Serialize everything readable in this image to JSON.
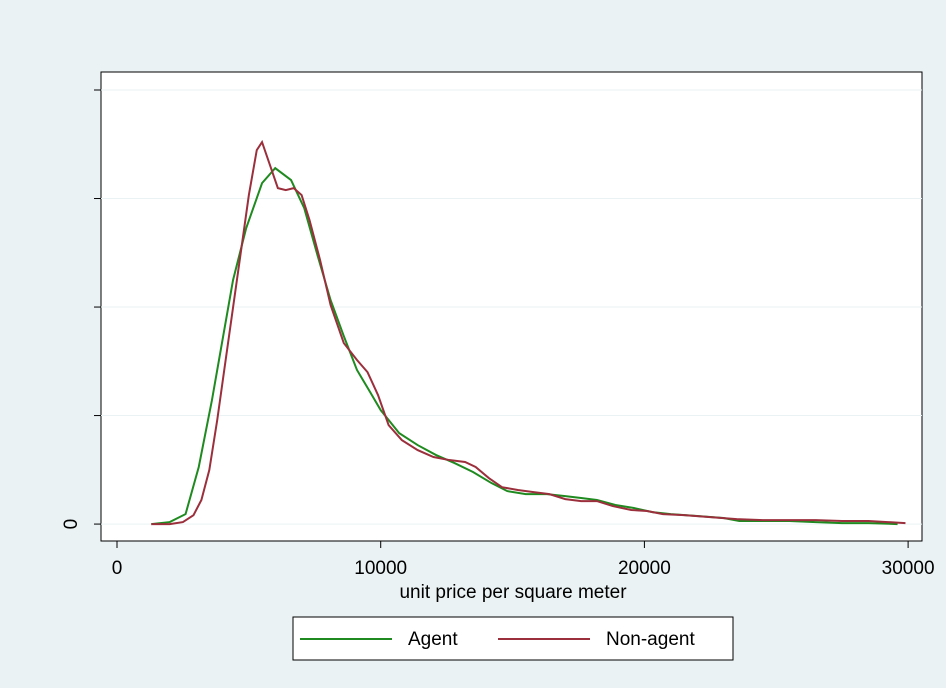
{
  "chart_data": {
    "type": "line",
    "xlabel": "unit price per square meter",
    "xlim": [
      -607,
      30527
    ],
    "ylim": [
      -7.8e-06,
      0.0002083
    ],
    "xticks": [
      0,
      10000,
      20000,
      30000
    ],
    "yticks": [
      0
    ],
    "yticks_unlabeled": [
      5e-05,
      0.0001,
      0.00015,
      0.0002
    ],
    "grid": true,
    "legend": "bottom",
    "series": [
      {
        "name": "Agent",
        "color": "#1f8a1f",
        "x": [
          1300,
          2000,
          2600,
          3100,
          3600,
          4000,
          4400,
          4900,
          5500,
          6000,
          6600,
          7100,
          7600,
          8100,
          8600,
          9100,
          9600,
          10000,
          10700,
          11400,
          12100,
          12800,
          13500,
          14200,
          14800,
          15500,
          16300,
          17000,
          17600,
          18200,
          18900,
          19600,
          20300,
          21000,
          22000,
          23000,
          23600,
          24500,
          25500,
          26500,
          27500,
          28500,
          29600
        ],
        "values": [
          0,
          9.2e-07,
          4.6e-06,
          2.63e-05,
          5.71e-05,
          8.48e-05,
          0.0001124,
          0.0001364,
          0.0001571,
          0.000164,
          0.0001585,
          0.0001456,
          0.000124,
          0.0001032,
          8.66e-05,
          7.1e-05,
          6.08e-05,
          5.25e-05,
          4.19e-05,
          3.64e-05,
          3.18e-05,
          2.81e-05,
          2.4e-05,
          1.89e-05,
          1.52e-05,
          1.38e-05,
          1.38e-05,
          1.29e-05,
          1.2e-05,
          1.11e-05,
          8.8e-06,
          7.4e-06,
          5.5e-06,
          4.6e-06,
          3.7e-06,
          2.8e-06,
          1.4e-06,
          1.4e-06,
          1.4e-06,
          9.2e-07,
          4.6e-07,
          4.6e-07,
          0
        ]
      },
      {
        "name": "Non-agent",
        "color": "#9b2f3c",
        "x": [
          1300,
          2000,
          2500,
          2900,
          3200,
          3500,
          3800,
          4200,
          4600,
          5000,
          5300,
          5500,
          5800,
          6100,
          6400,
          6700,
          7000,
          7300,
          7700,
          8100,
          8600,
          9100,
          9500,
          9900,
          10300,
          10800,
          11400,
          12000,
          12600,
          13200,
          13600,
          14100,
          14600,
          15200,
          15800,
          16400,
          17000,
          17600,
          18200,
          18800,
          19500,
          20100,
          20700,
          21500,
          22500,
          23500,
          24500,
          25500,
          26500,
          27500,
          28500,
          29900
        ],
        "values": [
          0,
          0,
          9.2e-07,
          4.1e-06,
          1.11e-05,
          2.49e-05,
          4.79e-05,
          8.25e-05,
          0.000117,
          0.0001516,
          0.0001723,
          0.000176,
          0.0001654,
          0.0001548,
          0.0001539,
          0.0001548,
          0.0001516,
          0.0001401,
          0.0001217,
          0.0001009,
          8.34e-05,
          7.56e-05,
          7e-05,
          5.94e-05,
          4.56e-05,
          3.87e-05,
          3.41e-05,
          3.09e-05,
          2.95e-05,
          2.86e-05,
          2.63e-05,
          2.12e-05,
          1.7e-05,
          1.57e-05,
          1.47e-05,
          1.38e-05,
          1.15e-05,
          1.06e-05,
          1.06e-05,
          8.3e-06,
          6.5e-06,
          6e-06,
          4.6e-06,
          4.1e-06,
          3.2e-06,
          2.3e-06,
          1.8e-06,
          1.8e-06,
          1.8e-06,
          1.4e-06,
          1.4e-06,
          4.6e-07
        ]
      }
    ]
  }
}
